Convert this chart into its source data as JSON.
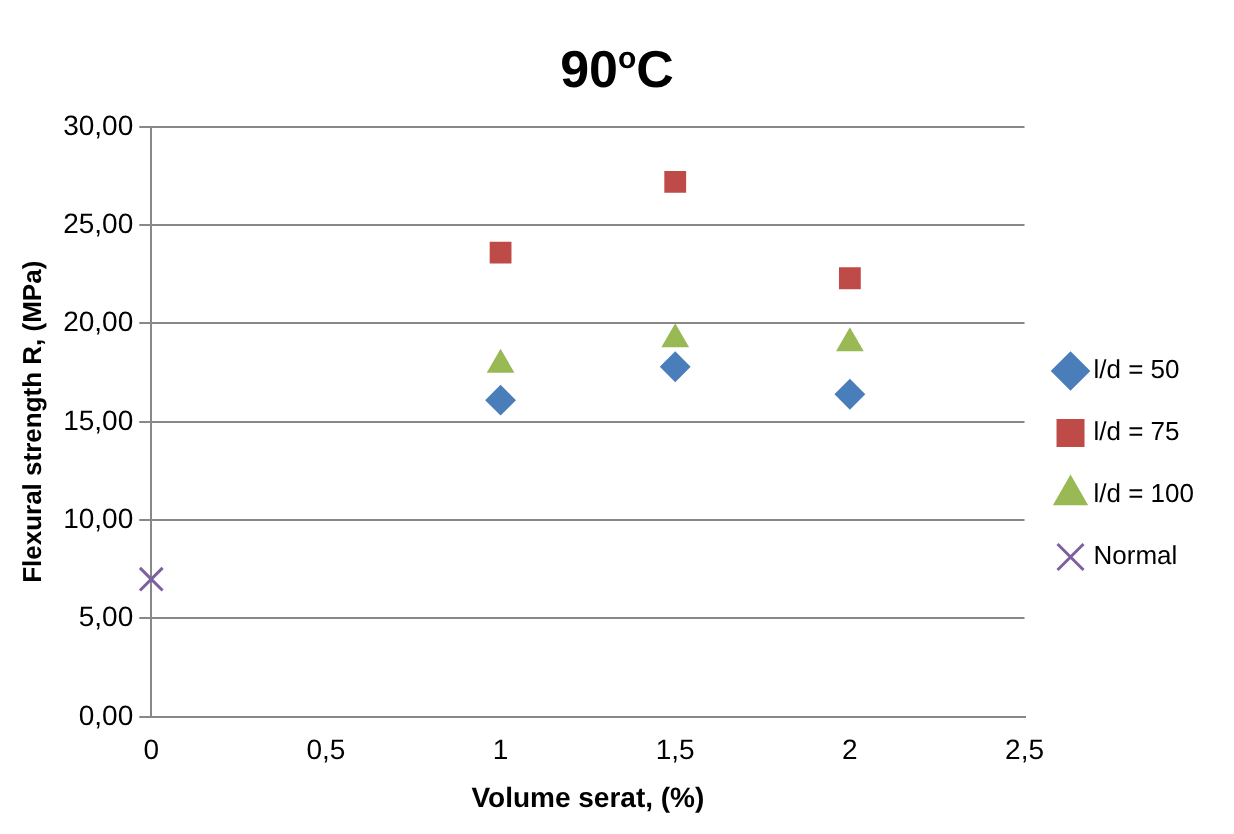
{
  "chart_data": {
    "type": "scatter",
    "title": "90$^{o}$C",
    "xlabel": "Volume serat, (%)",
    "ylabel": "Flexural strength R, (MPa)",
    "series": [
      {
        "name": "l/d = 50",
        "color": "#4a7ebb",
        "marker": "diamond",
        "x": [
          1,
          1.5,
          2
        ],
        "values": [
          16.1,
          17.8,
          16.4
        ]
      },
      {
        "name": "l/d = 75",
        "color": "#be4b48",
        "marker": "square",
        "x": [
          1,
          1.5,
          2
        ],
        "values": [
          23.6,
          27.2,
          22.3
        ]
      },
      {
        "name": "l/d = 100",
        "color": "#98b954",
        "marker": "triangle",
        "x": [
          1,
          1.5,
          2
        ],
        "values": [
          17.9,
          19.2,
          19.0
        ]
      },
      {
        "name": "Normal",
        "color": "#7d60a0",
        "marker": "cross",
        "x": [
          0
        ],
        "values": [
          7.0
        ]
      }
    ],
    "xlim": [
      0,
      2.5
    ],
    "xticks": [
      0,
      {
        "value": 0.5,
        "label": "0,5"
      },
      1,
      {
        "value": 1.5,
        "label": "1,5"
      },
      2,
      {
        "value": 2.5,
        "label": "2,5"
      }
    ],
    "ylim": [
      0,
      30
    ],
    "yticks": [
      {
        "value": 0,
        "label": "0,00"
      },
      {
        "value": 5,
        "label": "5,00"
      },
      {
        "value": 10,
        "label": "10,00"
      },
      {
        "value": 15,
        "label": "15,00"
      },
      {
        "value": 20,
        "label": "20,00"
      },
      {
        "value": 25,
        "label": "25,00"
      },
      {
        "value": 30,
        "label": "30,00"
      }
    ],
    "grid": "y",
    "legend": "right"
  }
}
